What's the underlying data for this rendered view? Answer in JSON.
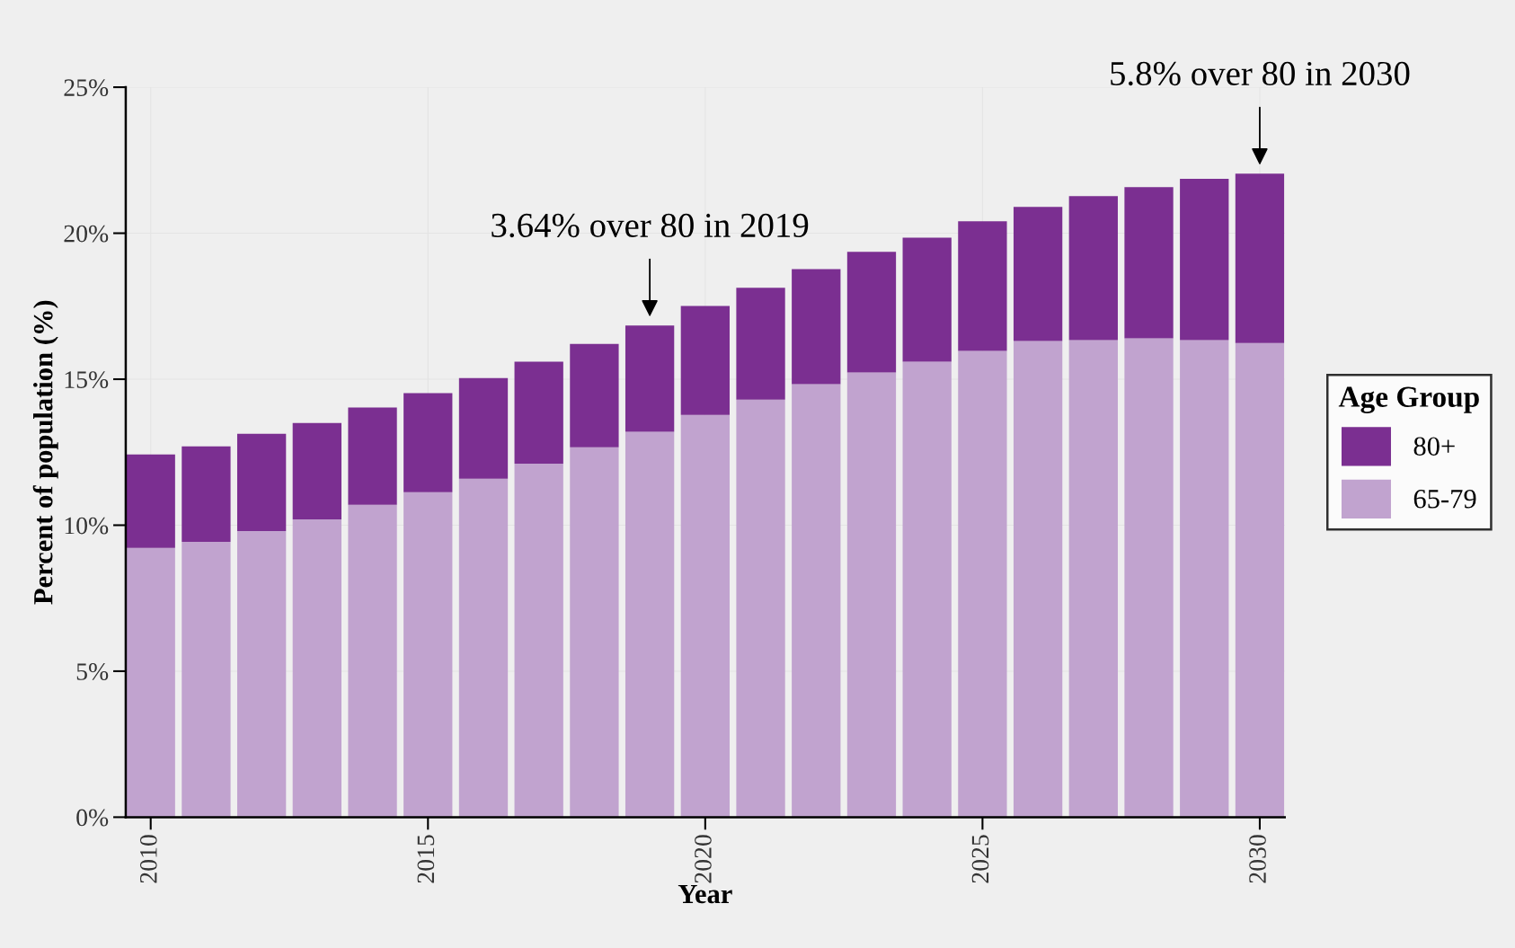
{
  "chart_data": {
    "type": "bar",
    "stacked": true,
    "xlabel": "Year",
    "ylabel": "Percent of population (%)",
    "legend_title": "Age Group",
    "legend": "right",
    "grid": true,
    "x": [
      2010,
      2011,
      2012,
      2013,
      2014,
      2015,
      2016,
      2017,
      2018,
      2019,
      2020,
      2021,
      2022,
      2023,
      2024,
      2025,
      2026,
      2027,
      2028,
      2029,
      2030
    ],
    "series": [
      {
        "name": "65-79",
        "color": "#c1a3cf",
        "values": [
          9.22,
          9.43,
          9.8,
          10.2,
          10.7,
          11.13,
          11.59,
          12.11,
          12.67,
          13.2,
          13.78,
          14.3,
          14.83,
          15.23,
          15.6,
          15.97,
          16.31,
          16.34,
          16.4,
          16.34,
          16.24
        ]
      },
      {
        "name": "80+",
        "color": "#7b2f91",
        "values": [
          3.2,
          3.27,
          3.33,
          3.3,
          3.33,
          3.39,
          3.45,
          3.49,
          3.54,
          3.64,
          3.73,
          3.83,
          3.94,
          4.13,
          4.25,
          4.44,
          4.59,
          4.93,
          5.18,
          5.52,
          5.8
        ]
      }
    ],
    "xlim": [
      2009.55,
      2030.45
    ],
    "xticks": [
      2010,
      2015,
      2020,
      2025,
      2030
    ],
    "ylim": [
      0,
      25
    ],
    "yticks": [
      {
        "value": 0,
        "label": "0%"
      },
      {
        "value": 5,
        "label": "5%"
      },
      {
        "value": 10,
        "label": "10%"
      },
      {
        "value": 15,
        "label": "15%"
      },
      {
        "value": 20,
        "label": "20%"
      },
      {
        "value": 25,
        "label": "25%"
      }
    ],
    "annotations": [
      {
        "text": "3.64% over 80 in 2019",
        "x": 2019,
        "y": 16.84
      },
      {
        "text": "5.8% over 80 in 2030",
        "x": 2030,
        "y": 22.04
      }
    ]
  }
}
